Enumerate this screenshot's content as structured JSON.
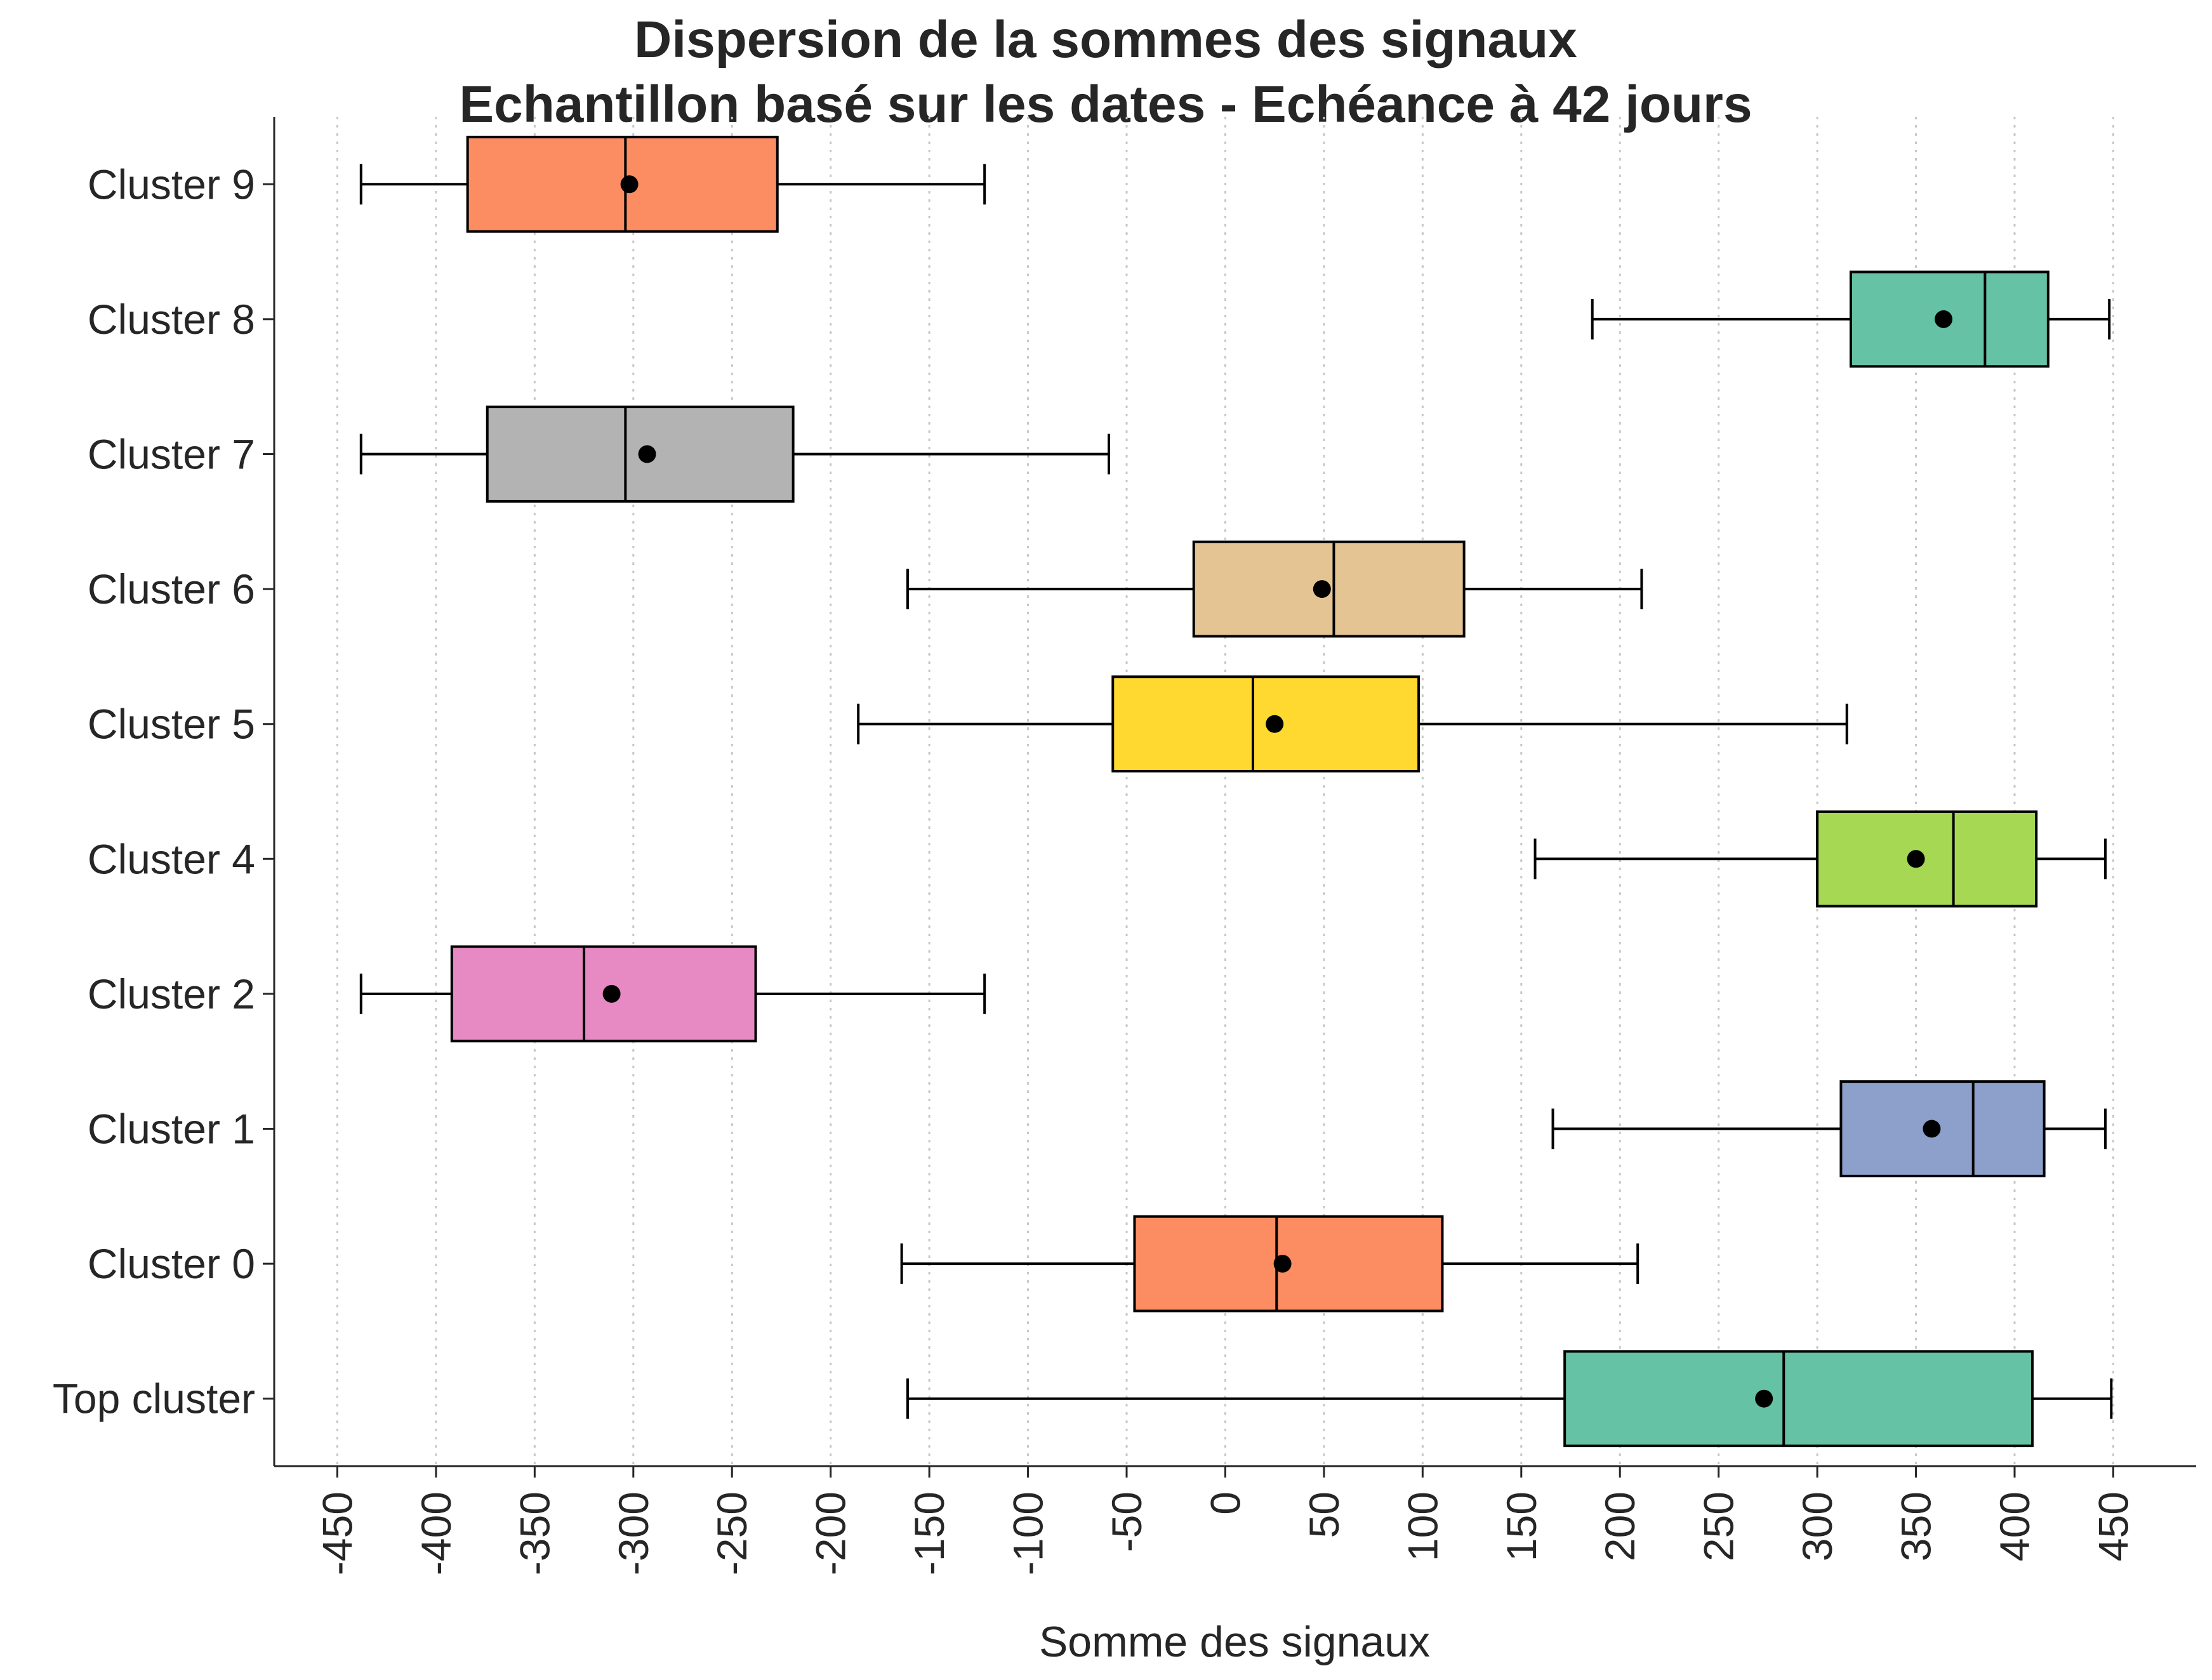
{
  "chart_data": {
    "type": "boxplot",
    "orientation": "horizontal",
    "title_line1": "Dispersion de la sommes des signaux",
    "title_line2": "Echantillon basé sur les dates - Echéance à 42 jours",
    "xlabel": "Somme des signaux",
    "ylabel": "",
    "xlim": [
      -482,
      492
    ],
    "xticks": [
      -450,
      -400,
      -350,
      -300,
      -250,
      -200,
      -150,
      -100,
      -50,
      0,
      50,
      100,
      150,
      200,
      250,
      300,
      350,
      400,
      450
    ],
    "grid": "vertical dotted",
    "series": [
      {
        "name": "Cluster 9",
        "color": "#fc8d62",
        "whislo": -438,
        "q1": -384,
        "med": -304,
        "q3": -227,
        "whishi": -122,
        "mean": -302
      },
      {
        "name": "Cluster 8",
        "color": "#66c2a5",
        "whislo": 186,
        "q1": 317,
        "med": 385,
        "q3": 417,
        "whishi": 448,
        "mean": 364
      },
      {
        "name": "Cluster 7",
        "color": "#b3b3b3",
        "whislo": -438,
        "q1": -374,
        "med": -304,
        "q3": -219,
        "whishi": -59,
        "mean": -293
      },
      {
        "name": "Cluster 6",
        "color": "#e5c494",
        "whislo": -161,
        "q1": -16,
        "med": 55,
        "q3": 121,
        "whishi": 211,
        "mean": 49
      },
      {
        "name": "Cluster 5",
        "color": "#ffd92f",
        "whislo": -186,
        "q1": -57,
        "med": 14,
        "q3": 98,
        "whishi": 315,
        "mean": 25
      },
      {
        "name": "Cluster 4",
        "color": "#a6d854",
        "whislo": 157,
        "q1": 300,
        "med": 369,
        "q3": 411,
        "whishi": 446,
        "mean": 350
      },
      {
        "name": "Cluster 2",
        "color": "#e78ac3",
        "whislo": -438,
        "q1": -392,
        "med": -325,
        "q3": -238,
        "whishi": -122,
        "mean": -311
      },
      {
        "name": "Cluster 1",
        "color": "#8da0cb",
        "whislo": 166,
        "q1": 312,
        "med": 379,
        "q3": 415,
        "whishi": 446,
        "mean": 358
      },
      {
        "name": "Cluster 0",
        "color": "#fc8d62",
        "whislo": -164,
        "q1": -46,
        "med": 26,
        "q3": 110,
        "whishi": 209,
        "mean": 29
      },
      {
        "name": "Top cluster",
        "color": "#66c2a5",
        "whislo": -161,
        "q1": 172,
        "med": 283,
        "q3": 409,
        "whishi": 449,
        "mean": 273
      }
    ]
  }
}
